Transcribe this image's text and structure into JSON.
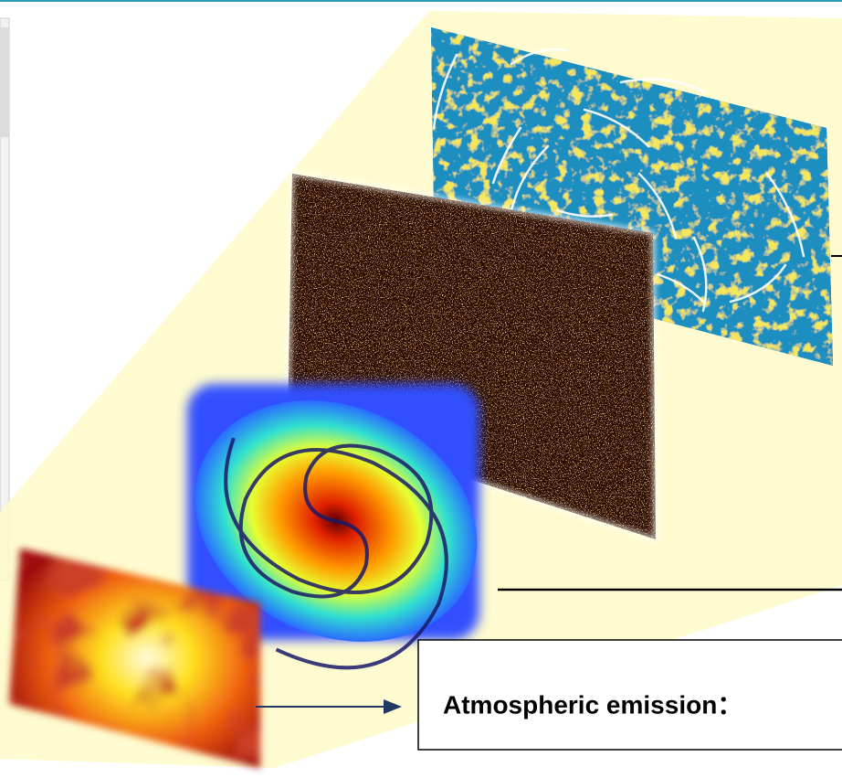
{
  "callout": {
    "text": "Atmospheric emission："
  }
}
